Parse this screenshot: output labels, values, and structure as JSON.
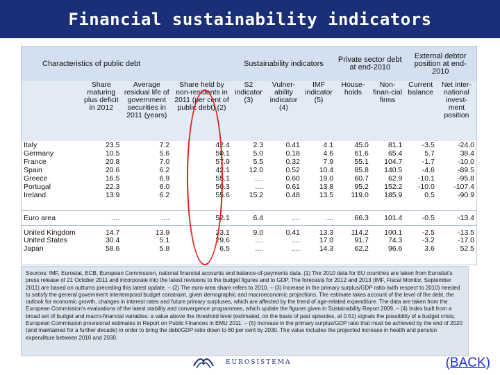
{
  "page": {
    "title": "Financial sustainability indicators",
    "back_label": "(BACK)",
    "logo_text": "EUROSISTEMA"
  },
  "table": {
    "group_headers": [
      "Characteristics of public debt",
      "Sustainability indicators",
      "Private sector debt at end-2010",
      "External debtor position at end-2010"
    ],
    "columns": [
      "Share maturing plus deficit in 2012",
      "Average residual life of government securities in 2011 (years)",
      "Share held by non-residents in 2011 (per cent of public debt) (2)",
      "S2 indicator (3)",
      "Vulner-ability indicator (4)",
      "IMF indicator (5)",
      "House-holds",
      "Non-finan-cial firms",
      "Current balance",
      "Net inter-national invest-ment position"
    ],
    "groups": [
      {
        "rows": [
          {
            "name": "Italy",
            "values": [
              "23.5",
              "7.2",
              "42.4",
              "2.3",
              "0.41",
              "4.1",
              "45.0",
              "81.1",
              "-3.5",
              "-24.0"
            ]
          },
          {
            "name": "Germany",
            "values": [
              "10.5",
              "5.6",
              "50.1",
              "5.0",
              "0.18",
              "4.6",
              "61.6",
              "65.4",
              "5.7",
              "38.4"
            ]
          },
          {
            "name": "France",
            "values": [
              "20.8",
              "7.0",
              "57.9",
              "5.5",
              "0.32",
              "7.9",
              "55.1",
              "104.7",
              "-1.7",
              "-10.0"
            ]
          },
          {
            "name": "Spain",
            "values": [
              "20.6",
              "6.2",
              "42.1",
              "12.0",
              "0.52",
              "10.4",
              "85.8",
              "140.5",
              "-4.6",
              "-89.5"
            ]
          },
          {
            "name": "Greece",
            "values": [
              "16.5",
              "6.9",
              "55.1",
              "....",
              "0.60",
              "19.0",
              "60.7",
              "62.9",
              "-10.1",
              "-95.8"
            ]
          },
          {
            "name": "Portugal",
            "values": [
              "22.3",
              "6.0",
              "50.3",
              "....",
              "0.61",
              "13.8",
              "95.2",
              "152.2",
              "-10.0",
              "-107.4"
            ]
          },
          {
            "name": "Ireland",
            "values": [
              "13.9",
              "6.2",
              "55.6",
              "15.2",
              "0.48",
              "13.5",
              "119.0",
              "185.9",
              "0.5",
              "-90.9"
            ]
          }
        ]
      },
      {
        "rows": [
          {
            "name": "Euro area",
            "values": [
              "....",
              "....",
              "52.1",
              "6.4",
              "....",
              "....",
              "66.3",
              "101.4",
              "-0.5",
              "-13.4"
            ]
          }
        ]
      },
      {
        "rows": [
          {
            "name": "United Kingdom",
            "values": [
              "14.7",
              "13.9",
              "23.1",
              "9.0",
              "0.41",
              "13.3",
              "114.2",
              "100.1",
              "-2.5",
              "-13.5"
            ]
          },
          {
            "name": "United States",
            "values": [
              "30.4",
              "5.1",
              "29.6",
              "....",
              "....",
              "17.0",
              "91.7",
              "74.3",
              "-3.2",
              "-17.0"
            ]
          },
          {
            "name": "Japan",
            "values": [
              "58.6",
              "5.8",
              "6.5",
              "....",
              "....",
              "14.3",
              "62.2",
              "96.6",
              "3.6",
              "52.5"
            ]
          }
        ]
      }
    ]
  },
  "notes": {
    "text": "Sources: IMF, Eurostat, ECB, European Commission, national financial accounts and balance-of-payments data. (1) The 2010 data for EU countries are taken from Eurostat's press release of 21 October 2011 and incorporate into the latest revisions to the budget figures and to GDP. The forecasts for 2012 and 2013 (IMF, Fiscal Monitor, September 2011) are based on outturns preceding this latest update. – (2) The euro-area share refers to 2010. – (3) Increase in the primary surplus/GDP ratio (with respect to 2010) needed to satisfy the general government intertemporal budget constraint, given demographic and macroeconomic projections. The estimate takes account of the level of the debt, the outlook for economic growth, changes in interest rates and future primary surpluses, which are affected by the trend of age-related expenditure. The data are taken from the European Commission's evaluations of the latest stability and convergence programmes, which update the figures given in Sustainability Report 2009. – (4) Index built from a broad set of budget and macro-financial variables: a value above the threshold level (estimated, on the basis of past episodes, at 0.51) signals the possibility of a budget crisis; European Commission provisional estimates in Report on Public Finances in EMU 2011. – (5) Increase in the primary surplus/GDP ratio that must be achieved by the end of 2020 (and maintained for a further decade) in order to bring the debt/GDP ratio down to 60 per cent by 2030. The value includes the projected increase in health and pension expenditure between 2010 and 2030."
  },
  "colors": {
    "title_bar": "#1a2f78",
    "header_fill": "#d3e0ef",
    "highlight": "#e0201b",
    "link": "#1a2fd0"
  }
}
